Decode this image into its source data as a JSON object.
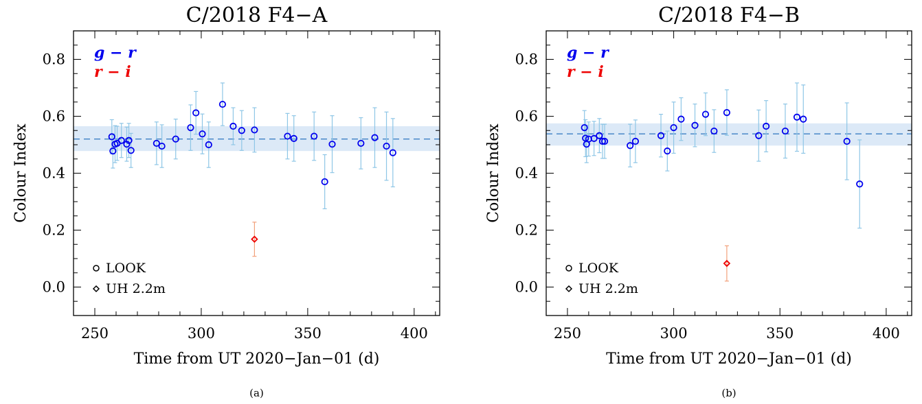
{
  "chart_data": [
    {
      "type": "scatter",
      "panel_caption": "(a)",
      "title": "C/2018 F4−A",
      "xlabel": "Time from UT 2020−Jan−01 (d)",
      "ylabel": "Colour Index",
      "xlim": [
        240,
        412
      ],
      "ylim": [
        -0.1,
        0.9
      ],
      "x_ticks": [
        250,
        300,
        350,
        400
      ],
      "y_ticks": [
        0.0,
        0.2,
        0.4,
        0.6,
        0.8
      ],
      "x_tick_labels": [
        "250",
        "300",
        "350",
        "400"
      ],
      "y_tick_labels": [
        "0.0",
        "0.2",
        "0.4",
        "0.6",
        "0.8"
      ],
      "grid": false,
      "legend_color": {
        "label_g": "g − r",
        "label_r": "r − i",
        "placement": "top-left"
      },
      "legend_marker": {
        "look": "LOOK",
        "uh": "UH 2.2m",
        "placement": "bottom-left"
      },
      "mean_band": {
        "mean": 0.52,
        "low": 0.478,
        "high": 0.565
      },
      "colors": {
        "g_r": "#0000ee",
        "r_i": "#ee0000",
        "errorbar_g": "#8ec6e6",
        "errorbar_r": "#f2a07a",
        "band": "#dce9f7",
        "mean_line": "#3d7fc4"
      },
      "series": [
        {
          "name": "g − r",
          "marker": "circle",
          "points": [
            {
              "x": 258.0,
              "y": 0.528,
              "err": 0.06
            },
            {
              "x": 258.5,
              "y": 0.478,
              "err": 0.06
            },
            {
              "x": 259.5,
              "y": 0.502,
              "err": 0.065
            },
            {
              "x": 260.5,
              "y": 0.505,
              "err": 0.06
            },
            {
              "x": 262.5,
              "y": 0.515,
              "err": 0.06
            },
            {
              "x": 265.0,
              "y": 0.502,
              "err": 0.06
            },
            {
              "x": 266.0,
              "y": 0.515,
              "err": 0.06
            },
            {
              "x": 267.0,
              "y": 0.48,
              "err": 0.06
            },
            {
              "x": 279.0,
              "y": 0.505,
              "err": 0.075
            },
            {
              "x": 281.5,
              "y": 0.495,
              "err": 0.075
            },
            {
              "x": 288.0,
              "y": 0.52,
              "err": 0.07
            },
            {
              "x": 295.0,
              "y": 0.56,
              "err": 0.08
            },
            {
              "x": 297.5,
              "y": 0.612,
              "err": 0.075
            },
            {
              "x": 300.5,
              "y": 0.538,
              "err": 0.07
            },
            {
              "x": 303.5,
              "y": 0.5,
              "err": 0.08
            },
            {
              "x": 310.0,
              "y": 0.642,
              "err": 0.075
            },
            {
              "x": 315.0,
              "y": 0.565,
              "err": 0.065
            },
            {
              "x": 319.0,
              "y": 0.55,
              "err": 0.07
            },
            {
              "x": 325.0,
              "y": 0.552,
              "err": 0.078
            },
            {
              "x": 340.5,
              "y": 0.53,
              "err": 0.08
            },
            {
              "x": 343.5,
              "y": 0.522,
              "err": 0.08
            },
            {
              "x": 353.0,
              "y": 0.53,
              "err": 0.085
            },
            {
              "x": 358.0,
              "y": 0.37,
              "err": 0.095
            },
            {
              "x": 361.5,
              "y": 0.502,
              "err": 0.1
            },
            {
              "x": 375.0,
              "y": 0.505,
              "err": 0.09
            },
            {
              "x": 381.5,
              "y": 0.525,
              "err": 0.105
            },
            {
              "x": 387.0,
              "y": 0.495,
              "err": 0.12
            },
            {
              "x": 390.0,
              "y": 0.472,
              "err": 0.12
            }
          ]
        },
        {
          "name": "r − i",
          "marker": "diamond",
          "points": [
            {
              "x": 325.0,
              "y": 0.168,
              "err": 0.06
            }
          ]
        }
      ]
    },
    {
      "type": "scatter",
      "panel_caption": "(b)",
      "title": "C/2018 F4−B",
      "xlabel": "Time from UT 2020−Jan−01 (d)",
      "ylabel": "Colour Index",
      "xlim": [
        240,
        412
      ],
      "ylim": [
        -0.1,
        0.9
      ],
      "x_ticks": [
        250,
        300,
        350,
        400
      ],
      "y_ticks": [
        0.0,
        0.2,
        0.4,
        0.6,
        0.8
      ],
      "x_tick_labels": [
        "250",
        "300",
        "350",
        "400"
      ],
      "y_tick_labels": [
        "0.0",
        "0.2",
        "0.4",
        "0.6",
        "0.8"
      ],
      "grid": false,
      "legend_color": {
        "label_g": "g − r",
        "label_r": "r − i",
        "placement": "top-left"
      },
      "legend_marker": {
        "look": "LOOK",
        "uh": "UH 2.2m",
        "placement": "bottom-left"
      },
      "mean_band": {
        "mean": 0.538,
        "low": 0.497,
        "high": 0.575
      },
      "colors": {
        "g_r": "#0000ee",
        "r_i": "#ee0000",
        "errorbar_g": "#8ec6e6",
        "errorbar_r": "#f2a07a",
        "band": "#dce9f7",
        "mean_line": "#3d7fc4"
      },
      "series": [
        {
          "name": "g − r",
          "marker": "circle",
          "points": [
            {
              "x": 258.0,
              "y": 0.56,
              "err": 0.06
            },
            {
              "x": 258.5,
              "y": 0.523,
              "err": 0.065
            },
            {
              "x": 259.0,
              "y": 0.502,
              "err": 0.065
            },
            {
              "x": 260.0,
              "y": 0.52,
              "err": 0.06
            },
            {
              "x": 262.5,
              "y": 0.522,
              "err": 0.06
            },
            {
              "x": 265.0,
              "y": 0.532,
              "err": 0.06
            },
            {
              "x": 266.5,
              "y": 0.512,
              "err": 0.06
            },
            {
              "x": 267.5,
              "y": 0.512,
              "err": 0.06
            },
            {
              "x": 279.5,
              "y": 0.497,
              "err": 0.075
            },
            {
              "x": 282.0,
              "y": 0.512,
              "err": 0.075
            },
            {
              "x": 294.0,
              "y": 0.532,
              "err": 0.075
            },
            {
              "x": 297.0,
              "y": 0.478,
              "err": 0.07
            },
            {
              "x": 300.0,
              "y": 0.56,
              "err": 0.09
            },
            {
              "x": 303.5,
              "y": 0.59,
              "err": 0.075
            },
            {
              "x": 310.0,
              "y": 0.568,
              "err": 0.075
            },
            {
              "x": 315.0,
              "y": 0.607,
              "err": 0.075
            },
            {
              "x": 319.0,
              "y": 0.548,
              "err": 0.075
            },
            {
              "x": 325.0,
              "y": 0.613,
              "err": 0.08
            },
            {
              "x": 340.0,
              "y": 0.532,
              "err": 0.09
            },
            {
              "x": 343.5,
              "y": 0.565,
              "err": 0.09
            },
            {
              "x": 352.5,
              "y": 0.548,
              "err": 0.095
            },
            {
              "x": 358.0,
              "y": 0.597,
              "err": 0.12
            },
            {
              "x": 361.0,
              "y": 0.59,
              "err": 0.12
            },
            {
              "x": 381.5,
              "y": 0.512,
              "err": 0.135
            },
            {
              "x": 387.5,
              "y": 0.362,
              "err": 0.155
            }
          ]
        },
        {
          "name": "r − i",
          "marker": "diamond",
          "points": [
            {
              "x": 325.0,
              "y": 0.083,
              "err": 0.062
            }
          ]
        }
      ]
    }
  ]
}
